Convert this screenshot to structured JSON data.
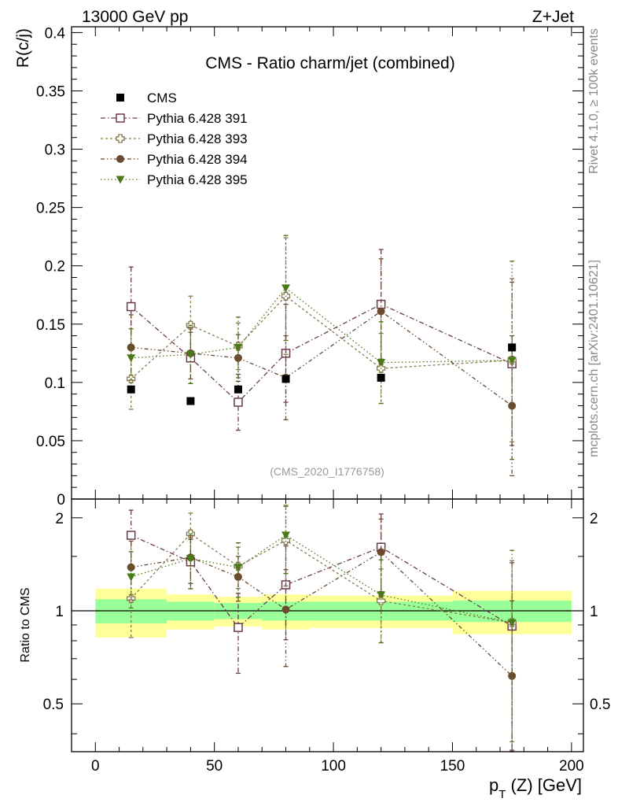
{
  "header": {
    "left": "13000 GeV pp",
    "right": "Z+Jet"
  },
  "side_labels": {
    "rivet": "Rivet 4.1.0, ≥ 100k events",
    "mcplots": "mcplots.cern.ch [arXiv:2401.10621]"
  },
  "chart_data": {
    "type": "scatter",
    "title": "CMS - Ratio charm/jet (combined)",
    "watermark": "(CMS_2020_I1776758)",
    "xlabel_main": "p",
    "xlabel_sub": "T",
    "xlabel_rest": " (Z) [GeV]",
    "ylabel": "R(c/j)",
    "ratio_ylabel": "Ratio to CMS",
    "xlim": [
      -10,
      205
    ],
    "ylim": [
      0,
      0.405
    ],
    "ratio_ylim": [
      0.35,
      2.3
    ],
    "x_ticks": [
      "0",
      "50",
      "100",
      "150",
      "200"
    ],
    "y_ticks": [
      "0",
      "0.05",
      "0.1",
      "0.15",
      "0.2",
      "0.25",
      "0.3",
      "0.35",
      "0.4"
    ],
    "ratio_y_ticks": [
      "0.5",
      "1",
      "2"
    ],
    "bins": [
      [
        0,
        30
      ],
      [
        30,
        50
      ],
      [
        50,
        70
      ],
      [
        70,
        90
      ],
      [
        90,
        150
      ],
      [
        150,
        200
      ]
    ],
    "x": [
      15,
      40,
      60,
      80,
      120,
      175
    ],
    "data": {
      "name": "CMS",
      "values": [
        0.094,
        0.084,
        0.094,
        0.103,
        0.104,
        0.13
      ],
      "band_inner": [
        0.09,
        0.07,
        0.06,
        0.07,
        0.07,
        0.08
      ],
      "band_outer": [
        0.18,
        0.13,
        0.11,
        0.13,
        0.12,
        0.16
      ]
    },
    "series": [
      {
        "name": "Pythia 6.428 391",
        "color": "#6b3a4e",
        "marker": "open-square",
        "dash": "6,3,1.5,3",
        "values": [
          0.165,
          0.121,
          0.083,
          0.125,
          0.167,
          0.116
        ],
        "errors": [
          0.034,
          0.022,
          0.024,
          0.042,
          0.047,
          0.07
        ]
      },
      {
        "name": "Pythia 6.428 393",
        "color": "#8a7a50",
        "marker": "open-cross",
        "dash": "3,3",
        "values": [
          0.103,
          0.149,
          0.131,
          0.174,
          0.112,
          0.119
        ],
        "errors": [
          0.026,
          0.025,
          0.02,
          0.05,
          0.03,
          0.07
        ]
      },
      {
        "name": "Pythia 6.428 394",
        "color": "#6b4a30",
        "marker": "circle",
        "dash": "5,3,1.5,3,1.5,3",
        "values": [
          0.13,
          0.125,
          0.121,
          0.104,
          0.161,
          0.08
        ],
        "errors": [
          0.028,
          0.022,
          0.02,
          0.036,
          0.045,
          0.06
        ]
      },
      {
        "name": "Pythia 6.428 395",
        "color": "#4a7a18",
        "marker": "triangle-down",
        "dash": "1.5,3",
        "values": [
          0.121,
          0.124,
          0.13,
          0.181,
          0.117,
          0.119
        ],
        "errors": [
          0.025,
          0.025,
          0.026,
          0.045,
          0.035,
          0.085
        ]
      }
    ]
  }
}
